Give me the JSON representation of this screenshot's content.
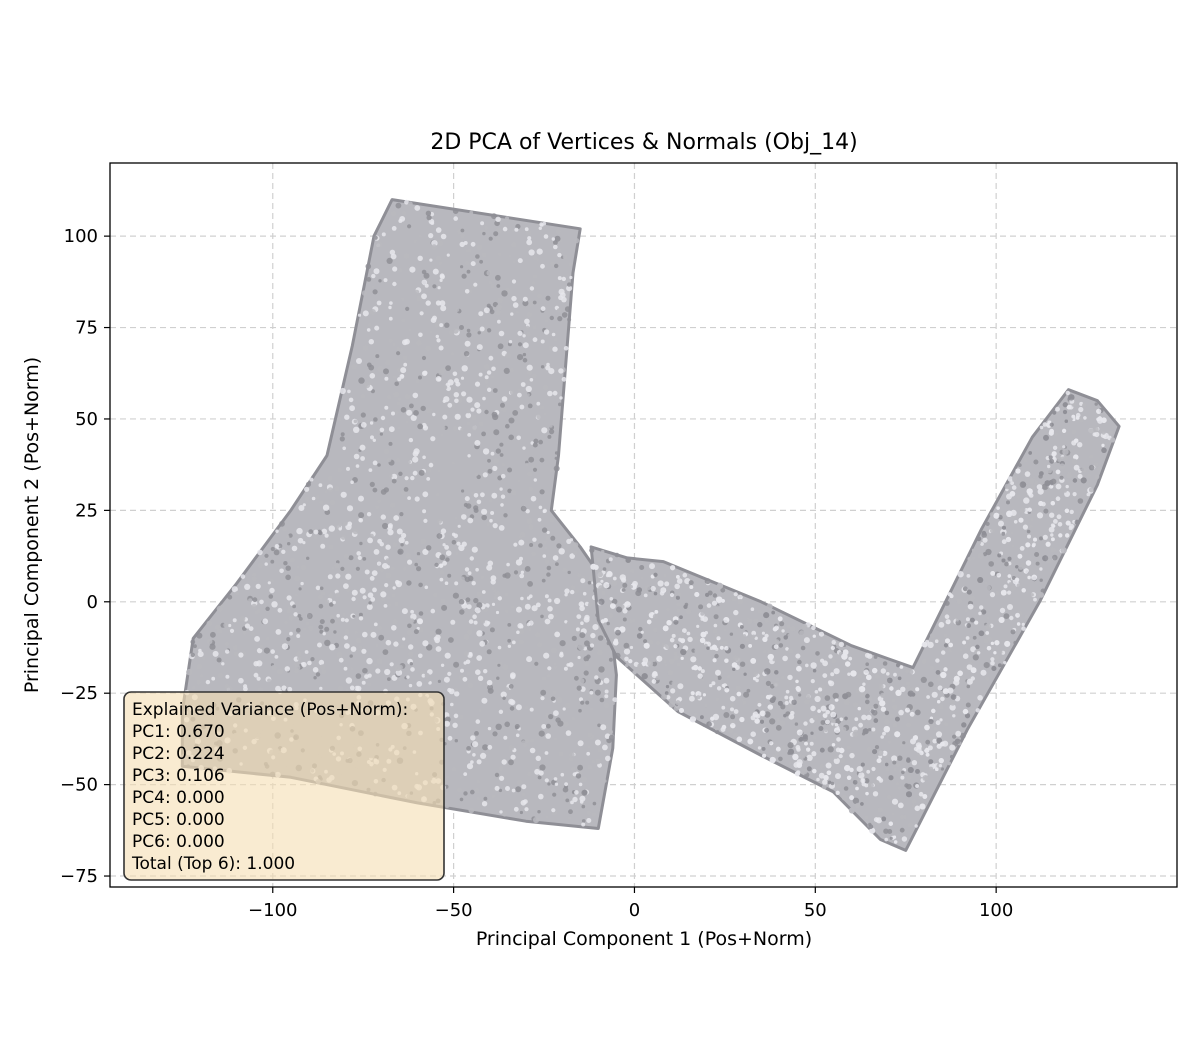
{
  "chart_data": {
    "type": "scatter",
    "title": "2D PCA of Vertices & Normals (Obj_14)",
    "xlabel": "Principal Component 1 (Pos+Norm)",
    "ylabel": "Principal Component 2 (Pos+Norm)",
    "xlim": [
      -145,
      150
    ],
    "ylim": [
      -78,
      120
    ],
    "xticks": [
      -100,
      -50,
      0,
      50,
      100
    ],
    "yticks": [
      -75,
      -50,
      -25,
      0,
      25,
      50,
      75,
      100
    ],
    "xtick_labels": [
      "−100",
      "−50",
      "0",
      "50",
      "100"
    ],
    "ytick_labels": [
      "−75",
      "−50",
      "−25",
      "0",
      "25",
      "50",
      "75",
      "100"
    ],
    "grid": true,
    "point_color": "#b8b8be",
    "point_shadow_color": "#8f8f96",
    "point_highlight_color": "#e6e6ec",
    "regions": [
      {
        "outline": [
          [
            -67,
            110
          ],
          [
            -15,
            102
          ],
          [
            -17,
            90
          ],
          [
            -21,
            40
          ],
          [
            -23,
            25
          ],
          [
            -15,
            15
          ],
          [
            -8,
            5
          ],
          [
            -5,
            -20
          ],
          [
            -6,
            -40
          ],
          [
            -10,
            -62
          ],
          [
            -30,
            -60
          ],
          [
            -60,
            -55
          ],
          [
            -95,
            -48
          ],
          [
            -125,
            -45
          ],
          [
            -125,
            -30
          ],
          [
            -122,
            -10
          ],
          [
            -110,
            5
          ],
          [
            -95,
            25
          ],
          [
            -85,
            40
          ],
          [
            -78,
            70
          ],
          [
            -72,
            100
          ]
        ]
      },
      {
        "outline": [
          [
            -12,
            15
          ],
          [
            -2,
            12
          ],
          [
            8,
            11
          ],
          [
            35,
            0
          ],
          [
            60,
            -12
          ],
          [
            77,
            -18
          ],
          [
            96,
            20
          ],
          [
            110,
            45
          ],
          [
            120,
            58
          ],
          [
            128,
            55
          ],
          [
            134,
            48
          ],
          [
            128,
            32
          ],
          [
            112,
            0
          ],
          [
            92,
            -35
          ],
          [
            75,
            -68
          ],
          [
            68,
            -65
          ],
          [
            55,
            -52
          ],
          [
            35,
            -42
          ],
          [
            12,
            -30
          ],
          [
            -5,
            -15
          ],
          [
            -10,
            -5
          ]
        ]
      }
    ],
    "legend": {
      "placement": "lower-left",
      "background": "#f5deb3",
      "lines": [
        "Explained Variance (Pos+Norm):",
        "PC1: 0.670",
        "PC2: 0.224",
        "PC3: 0.106",
        "PC4: 0.000",
        "PC5: 0.000",
        "PC6: 0.000",
        "Total (Top 6): 1.000"
      ]
    }
  }
}
